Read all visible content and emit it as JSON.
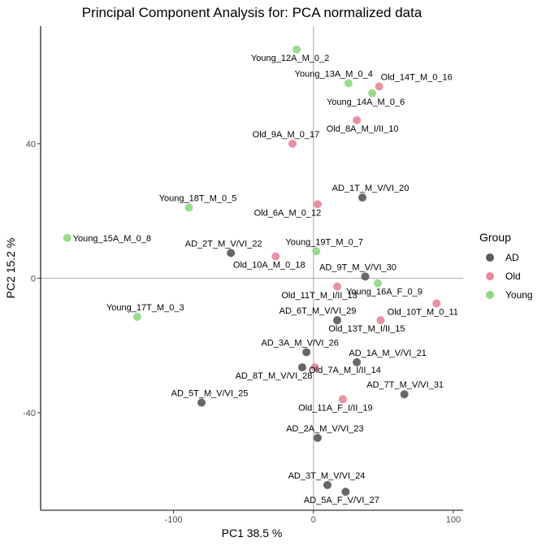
{
  "chart_data": {
    "type": "scatter",
    "title": "Principal Component Analysis for:  PCA normalized data",
    "xlabel": "PC1 38.5 %",
    "ylabel": "PC2 15.2 %",
    "xlim": [
      -195,
      107
    ],
    "ylim": [
      -69,
      75
    ],
    "xticks": [
      -100,
      0,
      100
    ],
    "yticks": [
      -40,
      0,
      40
    ],
    "grid": false,
    "zero_lines": true,
    "legend": {
      "title": "Group",
      "placement": "right",
      "entries": [
        {
          "name": "AD",
          "color": "#5a5a5a"
        },
        {
          "name": "Old",
          "color": "#e8889a"
        },
        {
          "name": "Young",
          "color": "#90d980"
        }
      ]
    },
    "points": [
      {
        "label": "Young_12A_M_0_2",
        "group": "Young",
        "x": -12,
        "y": 68,
        "anchor": "middle",
        "dx": -8,
        "dy": 14
      },
      {
        "label": "Young_13A_M_0_4",
        "group": "Young",
        "x": 25,
        "y": 58,
        "anchor": "middle",
        "dx": -18,
        "dy": -8
      },
      {
        "label": "Old_14T_M_0_16",
        "group": "Old",
        "x": 47,
        "y": 57,
        "anchor": "middle",
        "dx": 46,
        "dy": -8
      },
      {
        "label": "Young_14A_M_0_6",
        "group": "Young",
        "x": 42,
        "y": 55,
        "anchor": "middle",
        "dx": -8,
        "dy": 14
      },
      {
        "label": "Old_8A_M_I/II_10",
        "group": "Old",
        "x": 31,
        "y": 47,
        "anchor": "middle",
        "dx": 7,
        "dy": 14
      },
      {
        "label": "Old_9A_M_0_17",
        "group": "Old",
        "x": -15,
        "y": 40,
        "anchor": "middle",
        "dx": -8,
        "dy": -8
      },
      {
        "label": "AD_1T_M_V/VI_20",
        "group": "AD",
        "x": 35,
        "y": 24,
        "anchor": "middle",
        "dx": 10,
        "dy": -8
      },
      {
        "label": "Old_6A_M_0_12",
        "group": "Old",
        "x": 3,
        "y": 22,
        "anchor": "middle",
        "dx": -37,
        "dy": 14
      },
      {
        "label": "Young_18T_M_0_5",
        "group": "Young",
        "x": -89,
        "y": 21,
        "anchor": "middle",
        "dx": 11,
        "dy": -8
      },
      {
        "label": "Young_15A_M_0_8",
        "group": "Young",
        "x": -176,
        "y": 12,
        "anchor": "start",
        "dx": 7,
        "dy": 4
      },
      {
        "label": "AD_2T_M_V/VI_22",
        "group": "AD",
        "x": -59,
        "y": 7.5,
        "anchor": "middle",
        "dx": -9,
        "dy": -8
      },
      {
        "label": "Young_19T_M_0_7",
        "group": "Young",
        "x": 2,
        "y": 8,
        "anchor": "middle",
        "dx": 10,
        "dy": -8
      },
      {
        "label": "Old_10A_M_0_18",
        "group": "Old",
        "x": -27,
        "y": 6.5,
        "anchor": "middle",
        "dx": -8,
        "dy": 14
      },
      {
        "label": "AD_9T_M_V/VI_30",
        "group": "AD",
        "x": 37,
        "y": 0.5,
        "anchor": "middle",
        "dx": -9,
        "dy": -8
      },
      {
        "label": "Old_11T_M_I/II_13",
        "group": "Old",
        "x": 17,
        "y": -2.5,
        "anchor": "middle",
        "dx": -22,
        "dy": 14
      },
      {
        "label": "Young_16A_F_0_9",
        "group": "Young",
        "x": 46,
        "y": -1.5,
        "anchor": "middle",
        "dx": 8,
        "dy": 14
      },
      {
        "label": "Old_10T_M_0_11",
        "group": "Old",
        "x": 88,
        "y": -7.5,
        "anchor": "middle",
        "dx": -17,
        "dy": 14
      },
      {
        "label": "AD_6T_M_V/VI_29",
        "group": "AD",
        "x": 17,
        "y": -12.5,
        "anchor": "middle",
        "dx": -24,
        "dy": -8
      },
      {
        "label": "Old_13T_M_I/II_15",
        "group": "Old",
        "x": 48,
        "y": -12.5,
        "anchor": "middle",
        "dx": -17,
        "dy": 14
      },
      {
        "label": "Young_17T_M_0_3",
        "group": "Young",
        "x": -126,
        "y": -11.5,
        "anchor": "middle",
        "dx": 10,
        "dy": -8
      },
      {
        "label": "AD_3A_M_V/VI_26",
        "group": "AD",
        "x": -5,
        "y": -22,
        "anchor": "middle",
        "dx": -8,
        "dy": -8
      },
      {
        "label": "AD_1A_M_V/VI_21",
        "group": "AD",
        "x": 31,
        "y": -25,
        "anchor": "middle",
        "dx": 38,
        "dy": -8
      },
      {
        "label": "AD_8T_M_V/VI_28",
        "group": "AD",
        "x": -8,
        "y": -26.5,
        "anchor": "middle",
        "dx": -35,
        "dy": 14
      },
      {
        "label": "Old_7A_M_I/II_14",
        "group": "Old",
        "x": 1,
        "y": -26.5,
        "anchor": "middle",
        "dx": 37,
        "dy": 7
      },
      {
        "label": "AD_7T_M_V/VI_31",
        "group": "AD",
        "x": 65,
        "y": -34.5,
        "anchor": "middle",
        "dx": 1,
        "dy": -8
      },
      {
        "label": "Old_11A_F_I/II_19",
        "group": "Old",
        "x": 21,
        "y": -36,
        "anchor": "middle",
        "dx": -9,
        "dy": 14
      },
      {
        "label": "AD_5T_M_V/VI_25",
        "group": "AD",
        "x": -80,
        "y": -37,
        "anchor": "middle",
        "dx": 10,
        "dy": -8
      },
      {
        "label": "AD_2A_M_V/VI_23",
        "group": "AD",
        "x": 3,
        "y": -47.5,
        "anchor": "middle",
        "dx": 9,
        "dy": -8
      },
      {
        "label": "AD_3T_M_V/VI_24",
        "group": "AD",
        "x": 10,
        "y": -61.5,
        "anchor": "middle",
        "dx": -1,
        "dy": -8
      },
      {
        "label": "AD_5A_F_V/VI_27",
        "group": "AD",
        "x": 23,
        "y": -63.5,
        "anchor": "middle",
        "dx": -5,
        "dy": 14
      }
    ]
  }
}
